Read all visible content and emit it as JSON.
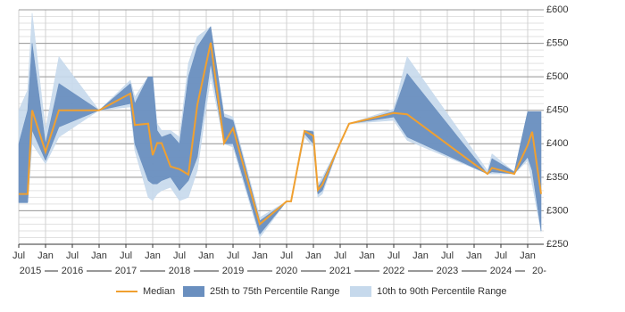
{
  "chart_data": {
    "type": "percentile-band",
    "x": [
      "2015-07",
      "2015-09",
      "2015-10",
      "2016-01",
      "2016-04",
      "2017-01",
      "2017-08",
      "2017-09",
      "2017-12",
      "2018-01",
      "2018-02",
      "2018-03",
      "2018-05",
      "2018-07",
      "2018-09",
      "2018-11",
      "2019-02",
      "2019-05",
      "2019-07",
      "2020-01",
      "2020-07",
      "2020-08",
      "2020-11",
      "2021-01",
      "2021-02",
      "2021-03",
      "2021-07",
      "2021-09",
      "2022-07",
      "2022-10",
      "2024-04",
      "2024-05",
      "2024-10",
      "2025-01",
      "2025-02",
      "2025-04"
    ],
    "series": [
      {
        "name": "Median",
        "color": "#f0a030",
        "values": [
          325,
          325,
          450,
          388,
          450,
          450,
          475,
          428,
          430,
          383,
          401,
          401,
          366,
          362,
          354,
          458,
          551,
          401,
          423,
          280,
          314,
          314,
          419,
          412,
          331,
          339,
          401,
          430,
          446,
          444,
          355,
          364,
          355,
          398,
          418,
          325
        ]
      },
      {
        "name": "25th to 75th Percentile Range",
        "color": "#6a8fbf",
        "low": [
          312,
          312,
          420,
          375,
          425,
          450,
          460,
          400,
          345,
          340,
          340,
          345,
          350,
          330,
          345,
          380,
          520,
          400,
          400,
          265,
          314,
          314,
          415,
          400,
          325,
          330,
          401,
          430,
          440,
          410,
          355,
          358,
          355,
          380,
          360,
          270
        ],
        "high": [
          400,
          450,
          550,
          400,
          490,
          450,
          490,
          460,
          500,
          500,
          420,
          410,
          415,
          400,
          500,
          545,
          575,
          440,
          435,
          285,
          314,
          314,
          420,
          418,
          335,
          345,
          401,
          430,
          448,
          505,
          355,
          378,
          358,
          448,
          448,
          448
        ]
      },
      {
        "name": "10th to 90th Percentile Range",
        "color": "#c6d9ec",
        "low": [
          312,
          312,
          400,
          370,
          410,
          450,
          455,
          390,
          320,
          315,
          325,
          330,
          335,
          315,
          320,
          360,
          500,
          400,
          395,
          260,
          314,
          314,
          410,
          395,
          320,
          325,
          401,
          430,
          435,
          405,
          355,
          355,
          355,
          375,
          340,
          268
        ],
        "high": [
          450,
          480,
          595,
          420,
          530,
          450,
          495,
          470,
          500,
          500,
          430,
          420,
          420,
          410,
          520,
          560,
          575,
          445,
          440,
          290,
          314,
          314,
          420,
          420,
          340,
          350,
          401,
          430,
          452,
          530,
          360,
          385,
          358,
          448,
          448,
          448
        ]
      }
    ],
    "xlim": [
      "2015-07",
      "2025-04"
    ],
    "xticks": [
      {
        "value": "2015-07",
        "label": "Jul"
      },
      {
        "value": "2016-01",
        "label": "Jan"
      },
      {
        "value": "2016-07",
        "label": "Jul"
      },
      {
        "value": "2017-01",
        "label": "Jan"
      },
      {
        "value": "2017-07",
        "label": "Jul"
      },
      {
        "value": "2018-01",
        "label": "Jan"
      },
      {
        "value": "2018-07",
        "label": "Jul"
      },
      {
        "value": "2019-01",
        "label": "Jan"
      },
      {
        "value": "2019-07",
        "label": "Jul"
      },
      {
        "value": "2020-01",
        "label": "Jan"
      },
      {
        "value": "2020-07",
        "label": "Jul"
      },
      {
        "value": "2021-01",
        "label": "Jan"
      },
      {
        "value": "2021-07",
        "label": "Jul"
      },
      {
        "value": "2022-01",
        "label": "Jan"
      },
      {
        "value": "2022-07",
        "label": "Jul"
      },
      {
        "value": "2023-01",
        "label": "Jan"
      },
      {
        "value": "2023-07",
        "label": "Jul"
      },
      {
        "value": "2024-01",
        "label": "Jan"
      },
      {
        "value": "2024-07",
        "label": "Jul"
      },
      {
        "value": "2025-01",
        "label": "Jan"
      }
    ],
    "year_labels": [
      "2015",
      "2016",
      "2017",
      "2018",
      "2019",
      "2020",
      "2021",
      "2022",
      "2023",
      "2024",
      "20-"
    ],
    "ylim": [
      250,
      600
    ],
    "yticks": [
      {
        "value": 250,
        "label": "£250"
      },
      {
        "value": 300,
        "label": "£300"
      },
      {
        "value": 350,
        "label": "£350"
      },
      {
        "value": 400,
        "label": "£400"
      },
      {
        "value": 450,
        "label": "£450"
      },
      {
        "value": 500,
        "label": "£500"
      },
      {
        "value": 550,
        "label": "£550"
      },
      {
        "value": 600,
        "label": "£600"
      }
    ],
    "y_minor_step": 10,
    "grid": true,
    "legend": "bottom"
  }
}
